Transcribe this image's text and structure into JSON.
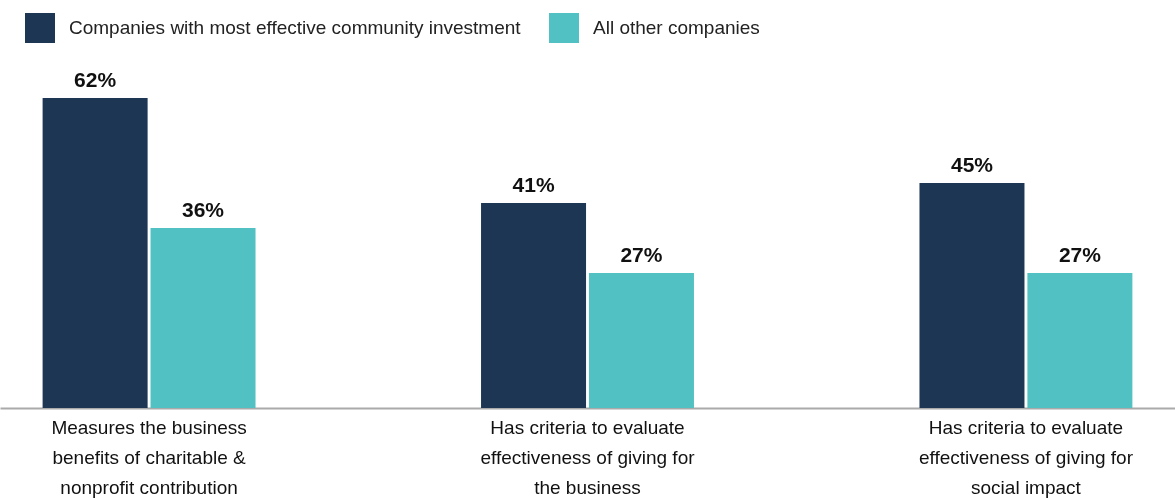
{
  "chart_data": {
    "type": "bar",
    "categories": [
      "Measures the business benefits of charitable & nonprofit contribution",
      "Has criteria to evaluate effectiveness of giving for the business",
      "Has criteria to evaluate effectiveness of giving for social impact"
    ],
    "series": [
      {
        "name": "Companies with most effective community investment",
        "color": "#1c3654",
        "values": [
          62,
          41,
          45
        ],
        "value_labels": [
          "62%",
          "41%",
          "45%"
        ]
      },
      {
        "name": "All other companies",
        "color": "#52c1c3",
        "values": [
          36,
          27,
          27
        ],
        "value_labels": [
          "36%",
          "27%",
          "27%"
        ]
      }
    ],
    "legend": "top left",
    "grid": false
  }
}
